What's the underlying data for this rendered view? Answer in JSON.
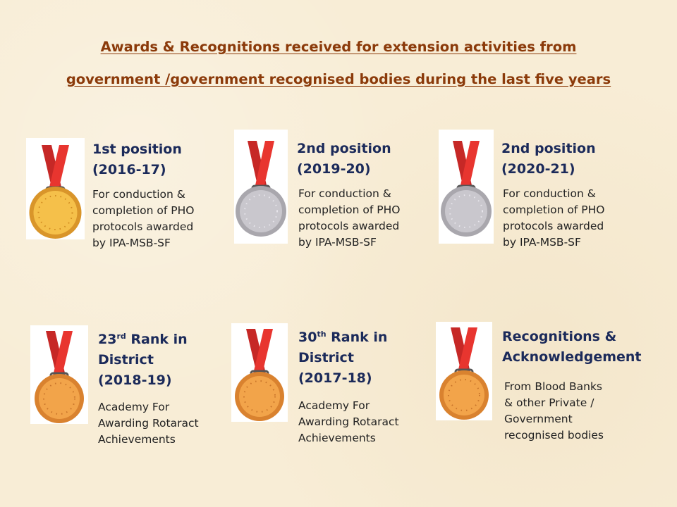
{
  "title": {
    "line1": "Awards & Recognitions received for extension activities from",
    "line2": "government /government recognised bodies during the last five years"
  },
  "colors": {
    "title": "#8b3a0a",
    "heading": "#1b2a5a",
    "ribbon": "#e0302c",
    "gold": "#f2b43a",
    "silver": "#c4c2c8",
    "bronze": "#f0a04a"
  },
  "awards": [
    {
      "medal_icon": "gold-medal-icon",
      "heading": {
        "line1": "1st position",
        "line2": "(2016-17)"
      },
      "desc": [
        "For conduction &",
        "completion of PHO",
        "protocols awarded",
        "by IPA-MSB-SF"
      ]
    },
    {
      "medal_icon": "silver-medal-icon",
      "heading": {
        "line1": "2nd position",
        "line2": "(2019-20)"
      },
      "desc": [
        "For conduction &",
        "completion of PHO",
        "protocols awarded",
        "by IPA-MSB-SF"
      ]
    },
    {
      "medal_icon": "silver-medal-icon",
      "heading": {
        "line1": "2nd position",
        "line2": "(2020-21)"
      },
      "desc": [
        "For conduction &",
        "completion of PHO",
        "protocols awarded",
        "by IPA-MSB-SF"
      ]
    },
    {
      "medal_icon": "bronze-medal-icon",
      "heading": {
        "num": "23",
        "sup": "rd",
        "rest": " Rank in",
        "line2": "District",
        "line3": "(2018-19)"
      },
      "desc": [
        "Academy For",
        "Awarding Rotaract",
        "Achievements"
      ]
    },
    {
      "medal_icon": "bronze-medal-icon",
      "heading": {
        "num": "30",
        "sup": "th",
        "rest": " Rank in",
        "line2": "District",
        "line3": "(2017-18)"
      },
      "desc": [
        "Academy For",
        "Awarding Rotaract",
        "Achievements"
      ]
    },
    {
      "medal_icon": "bronze-medal-icon",
      "heading": {
        "line1": "Recognitions &",
        "line2": "Acknowledgement"
      },
      "desc": [
        "From Blood Banks",
        "& other Private /",
        "Government",
        "recognised bodies"
      ]
    }
  ]
}
